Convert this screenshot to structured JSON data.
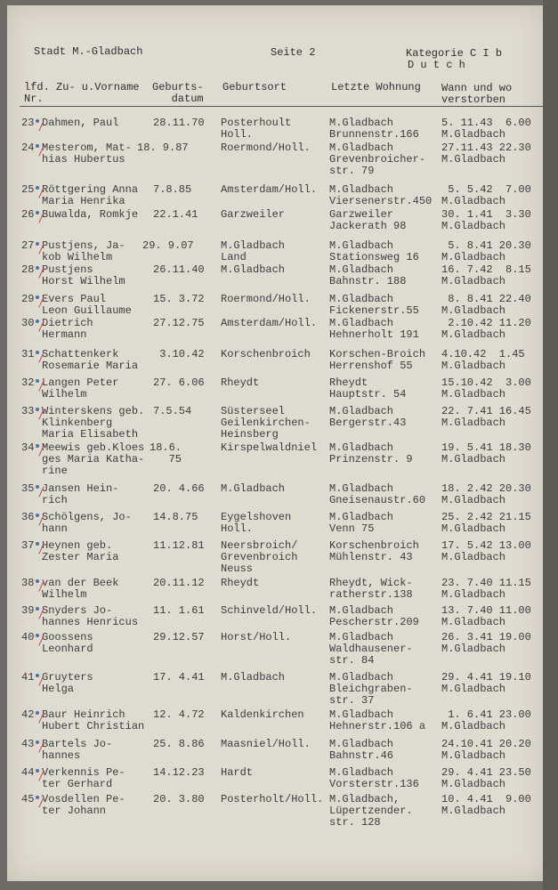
{
  "header": {
    "city": "Stadt M.-Gladbach",
    "page": "Seite 2",
    "category": "Kategorie C I b",
    "nationality": "D u t c h"
  },
  "columns": {
    "nr": "lfd.\nNr.",
    "name": "Zu- u.Vorname",
    "birthdate": "Geburts-\n   datum",
    "birthplace": "Geburtsort",
    "last_address": "Letzte Wohnung",
    "death": "Wann und wo\nverstorben"
  },
  "colors": {
    "ink": "#3c3c3e",
    "paper": "#dedbd1",
    "check_mark": "#c0504d",
    "blue_mark": "#4a72a8"
  },
  "rows": [
    {
      "nr": "23",
      "name": "Dahmen, Paul",
      "birthdate": "28.11.70",
      "birthplace": "Posterhoult\nHoll.",
      "address": "M.Gladbach\nBrunnenstr.166",
      "death": "5. 11.43  6.00\nM.Gladbach"
    },
    {
      "nr": "24",
      "name": "Mesterom, Mat-\nhias Hubertus",
      "birthdate": "18. 9.87",
      "birthplace": "Roermond/Holl.",
      "address": "M.Gladbach\nGrevenbroicher-\nstr. 79",
      "death": "27.11.43 22.30\nM.Gladbach"
    },
    {
      "nr": "25",
      "name": "Röttgering Anna\nMaria Henrika",
      "birthdate": "7.8.85",
      "birthplace": "Amsterdam/Holl.",
      "address": "M.Gladbach\nViersenerstr.450",
      "death": " 5. 5.42  7.00\nM.Gladbach"
    },
    {
      "nr": "26",
      "name": "Buwalda, Romkje",
      "birthdate": "22.1.41",
      "birthplace": "Garzweiler",
      "address": "Garzweiler\nJackerath 98",
      "death": "30. 1.41  3.30\nM.Gladbach"
    },
    {
      "nr": "27",
      "name": "Pustjens, Ja-\nkob Wilhelm",
      "birthdate": "29. 9.07",
      "birthplace": "M.Gladbach\nLand",
      "address": "M.Gladbach\nStationsweg 16",
      "death": " 5. 8.41 20.30\nM.Gladbach"
    },
    {
      "nr": "28",
      "name": "Pustjens\nHorst Wilhelm",
      "birthdate": "26.11.40",
      "birthplace": "M.Gladbach",
      "address": "M.Gladbach\nBahnstr. 188",
      "death": "16. 7.42  8.15\nM.Gladbach"
    },
    {
      "nr": "29",
      "name": "Evers Paul\nLeon Guillaume",
      "birthdate": "15. 3.72",
      "birthplace": "Roermond/Holl.",
      "address": "M.Gladbach\nFickenerstr.55",
      "death": " 8. 8.41 22.40\nM.Gladbach"
    },
    {
      "nr": "30",
      "name": "Dietrich\nHermann",
      "birthdate": "27.12.75",
      "birthplace": "Amsterdam/Holl.",
      "address": "M.Gladbach\nHehnerholt 191",
      "death": " 2.10.42 11.20\nM.Gladbach"
    },
    {
      "nr": "31",
      "name": "Schattenkerk\nRosemarie Maria",
      "birthdate": " 3.10.42",
      "birthplace": "Korschenbroich",
      "address": "Korschen-Broich\nHerrenshof 55",
      "death": "4.10.42  1.45\nM.Gladbach"
    },
    {
      "nr": "32",
      "name": "Langen Peter\nWilhelm",
      "birthdate": "27. 6.06",
      "birthplace": "Rheydt",
      "address": "Rheydt\nHauptstr. 54",
      "death": "15.10.42  3.00\nM.Gladbach"
    },
    {
      "nr": "33",
      "name": "Winterskens geb.\nKlinkenberg\nMaria Elisabeth",
      "birthdate": "7.5.54",
      "birthplace": "Süsterseel\nGeilenkirchen-\nHeinsberg",
      "address": "M.Gladbach\nBergerstr.43",
      "death": "22. 7.41 16.45\nM.Gladbach"
    },
    {
      "nr": "34",
      "name": "Meewis geb.Kloes\nges Maria Katha-\nrine",
      "birthdate": "18.6.\n   75",
      "birthplace": "Kirspelwaldniel",
      "address": "M.Gladbach\nPrinzenstr. 9",
      "death": "19. 5.41 18.30\nM.Gladbach"
    },
    {
      "nr": "35",
      "name": "Jansen Hein-\nrich",
      "birthdate": "20. 4.66",
      "birthplace": "M.Gladbach",
      "address": "M.Gladbach\nGneisenaustr.60",
      "death": "18. 2.42 20.30\nM.Gladbach"
    },
    {
      "nr": "36",
      "name": "Schölgens, Jo-\nhann",
      "birthdate": "14.8.75",
      "birthplace": "Eygelshoven\nHoll.",
      "address": "M.Gladbach\nVenn 75",
      "death": "25. 2.42 21.15\nM.Gladbach"
    },
    {
      "nr": "37",
      "name": "Heynen geb.\nZester Maria",
      "birthdate": "11.12.81",
      "birthplace": "Neersbroich/\nGrevenbroich\nNeuss",
      "address": "Korschenbroich\nMühlenstr. 43",
      "death": "17. 5.42 13.00\nM.Gladbach"
    },
    {
      "nr": "38",
      "name": "van der Beek\nWilhelm",
      "birthdate": "20.11.12",
      "birthplace": "Rheydt",
      "address": "Rheydt, Wick-\nratherstr.138",
      "death": "23. 7.40 11.15\nM.Gladbach"
    },
    {
      "nr": "39",
      "name": "Snyders Jo-\nhannes Henricus",
      "birthdate": "11. 1.61",
      "birthplace": "Schinveld/Holl.",
      "address": "M.Gladbach\nPescherstr.209",
      "death": "13. 7.40 11.00\nM.Gladbach"
    },
    {
      "nr": "40",
      "name": "Goossens\nLeonhard",
      "birthdate": "29.12.57",
      "birthplace": "Horst/Holl.",
      "address": "M.Gladbach\nWaldhausener-\nstr. 84",
      "death": "26. 3.41 19.00\nM.Gladbach"
    },
    {
      "nr": "41",
      "name": "Gruyters\nHelga",
      "birthdate": "17. 4.41",
      "birthplace": "M.Gladbach",
      "address": "M.Gladbach\nBleichgraben-\nstr. 37",
      "death": "29. 4.41 19.10\nM.Gladbach"
    },
    {
      "nr": "42",
      "name": "Baur Heinrich\nHubert Christian",
      "birthdate": "12. 4.72",
      "birthplace": "Kaldenkirchen",
      "address": "M.Gladbach\nHehnerstr.106 a",
      "death": " 1. 6.41 23.00\nM.Gladbach"
    },
    {
      "nr": "43",
      "name": "Bartels Jo-\nhannes",
      "birthdate": "25. 8.86",
      "birthplace": "Maasniel/Holl.",
      "address": "M.Gladbach\nBahnstr.46",
      "death": "24.10.41 20.20\nM.Gladbach"
    },
    {
      "nr": "44",
      "name": "Verkennis Pe-\nter Gerhard",
      "birthdate": "14.12.23",
      "birthplace": "Hardt",
      "address": "M.Gladbach\nVorsterstr.136",
      "death": "29. 4.41 23.50\nM.Gladbach"
    },
    {
      "nr": "45",
      "name": "Vosdellen Pe-\nter Johann",
      "birthdate": "20. 3.80",
      "birthplace": "Posterholt/Holl.",
      "address": "M.Gladbach,\nLüpertzender.\nstr. 128",
      "death": "10. 4.41  9.00\nM.Gladbach"
    }
  ]
}
